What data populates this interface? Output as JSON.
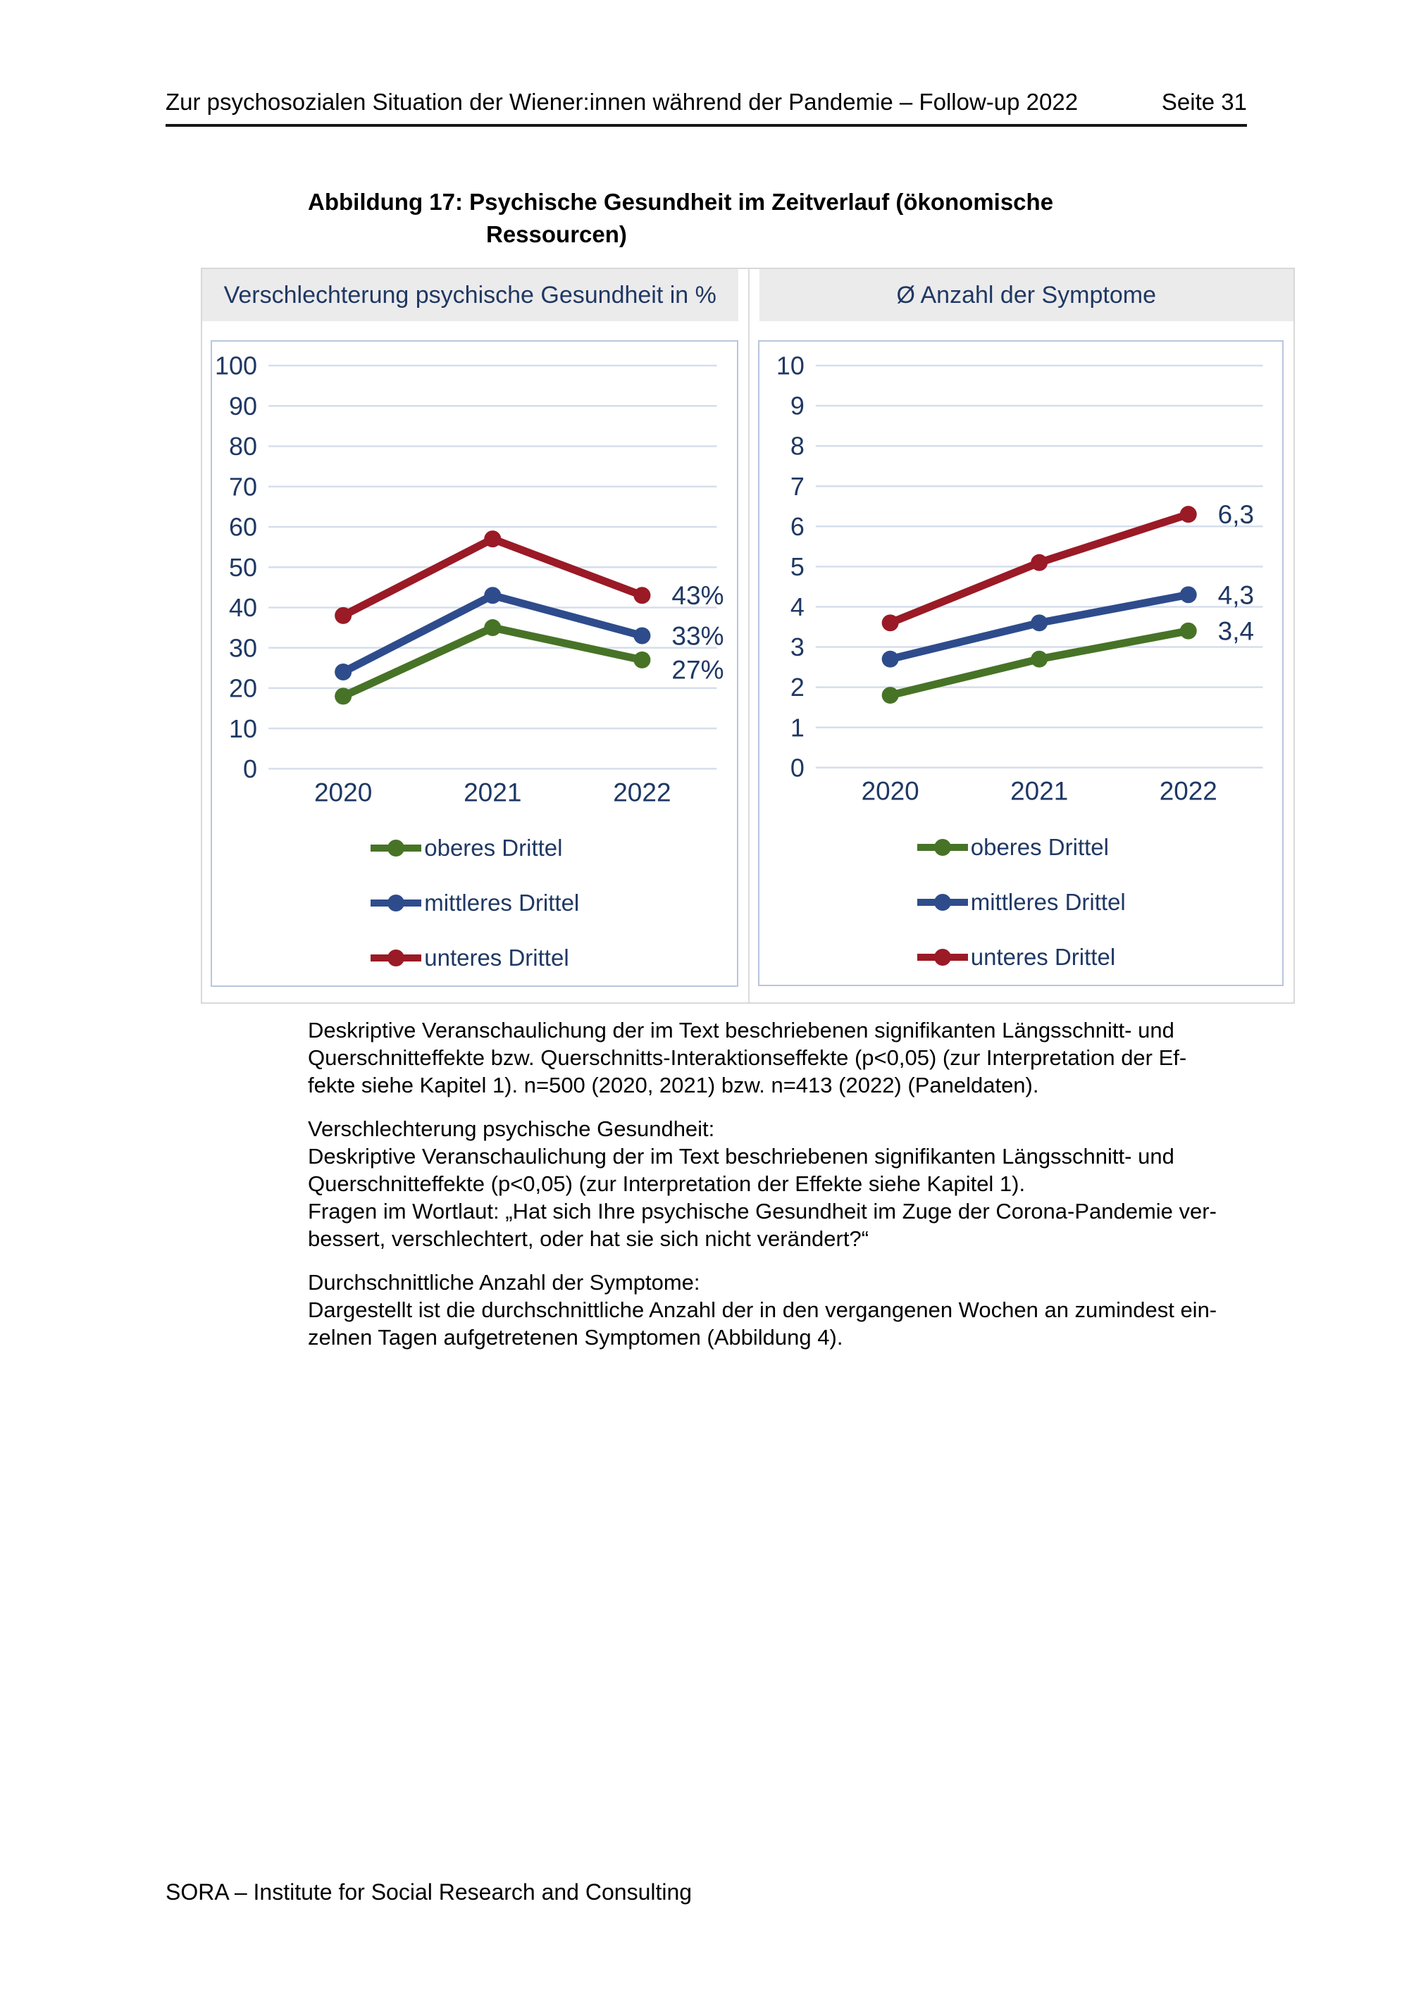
{
  "header": {
    "title": "Zur psychosozialen Situation der Wiener:innen während der Pandemie – Follow-up 2022",
    "page_label": "Seite 31"
  },
  "figure_caption": "Abbildung 17: Psychische Gesundheit im Zeitverlauf (ökonomische\nRessourcen)",
  "colors": {
    "navy": "#1f3864",
    "green": "#477327",
    "blue": "#2e4c8c",
    "red": "#9a1a26",
    "grid": "#d6deeb"
  },
  "chart_data": [
    {
      "type": "line",
      "title": "Verschlechterung psychische Gesundheit in %",
      "categories": [
        "2020",
        "2021",
        "2022"
      ],
      "series": [
        {
          "name": "oberes Drittel",
          "color_key": "green",
          "values": [
            18,
            35,
            27
          ],
          "end_label": "27%"
        },
        {
          "name": "mittleres Drittel",
          "color_key": "blue",
          "values": [
            24,
            43,
            33
          ],
          "end_label": "33%"
        },
        {
          "name": "unteres Drittel",
          "color_key": "red",
          "values": [
            38,
            57,
            43
          ],
          "end_label": "43%"
        }
      ],
      "ylim": [
        0,
        100
      ],
      "ytick_step": 10,
      "grid": true,
      "legend_position": "bottom"
    },
    {
      "type": "line",
      "title": "Ø Anzahl der Symptome",
      "categories": [
        "2020",
        "2021",
        "2022"
      ],
      "series": [
        {
          "name": "oberes Drittel",
          "color_key": "green",
          "values": [
            1.8,
            2.7,
            3.4
          ],
          "end_label": "3,4"
        },
        {
          "name": "mittleres Drittel",
          "color_key": "blue",
          "values": [
            2.7,
            3.6,
            4.3
          ],
          "end_label": "4,3"
        },
        {
          "name": "unteres Drittel",
          "color_key": "red",
          "values": [
            3.6,
            5.1,
            6.3
          ],
          "end_label": "6,3"
        }
      ],
      "ylim": [
        0,
        10
      ],
      "ytick_step": 1,
      "grid": true,
      "legend_position": "bottom"
    }
  ],
  "footnotes": [
    "Deskriptive Veranschaulichung der im Text beschriebenen signifikanten Längsschnitt- und\nQuerschnitteffekte bzw. Querschnitts-Interaktionseffekte (p<0,05) (zur Interpretation der Ef-\nfekte siehe Kapitel 1). n=500 (2020, 2021) bzw. n=413 (2022) (Paneldaten).",
    "Verschlechterung psychische Gesundheit:\nDeskriptive Veranschaulichung der im Text beschriebenen signifikanten Längsschnitt- und\nQuerschnitteffekte (p<0,05) (zur Interpretation der Effekte siehe Kapitel 1).\nFragen im Wortlaut: „Hat sich Ihre psychische Gesundheit im Zuge der Corona-Pandemie ver-\nbessert, verschlechtert, oder hat sie sich nicht verändert?“",
    "Durchschnittliche Anzahl der Symptome:\nDargestellt ist die durchschnittliche Anzahl der in den vergangenen Wochen an zumindest ein-\nzelnen Tagen aufgetretenen Symptomen (Abbildung 4)."
  ],
  "footer": "SORA – Institute for Social Research and Consulting"
}
